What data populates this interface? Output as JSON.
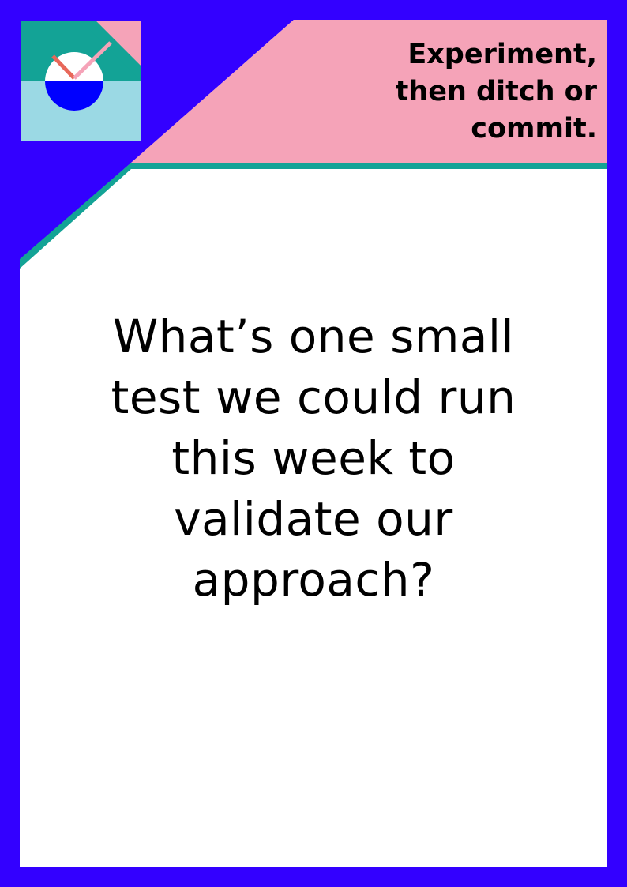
{
  "card": {
    "tagline_lines": [
      "Experiment,",
      "then ditch or",
      "commit."
    ],
    "question_lines": [
      "What’s one small",
      "test we could run",
      "this week to",
      "validate our",
      "approach?"
    ]
  },
  "icons": {
    "logo": "clock-icon"
  },
  "colors": {
    "frame": "#3300FF",
    "banner_pink": "#F5A3B8",
    "teal": "#13A396",
    "logo_light_blue": "#9BD9E4",
    "logo_blue": "#0000FF",
    "logo_hand_red": "#E8685A",
    "logo_hand_pink": "#F5A3B8",
    "card_white": "#FFFFFF"
  }
}
